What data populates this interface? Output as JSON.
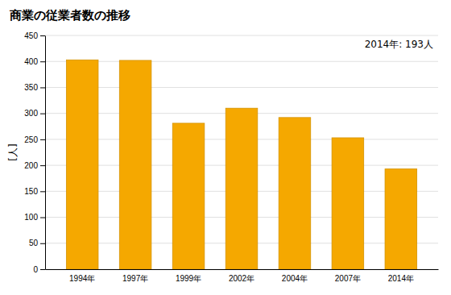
{
  "chart_data": {
    "type": "bar",
    "title": "商業の従業者数の推移",
    "ylabel": "[人]",
    "annotation": "2014年: 193人",
    "categories": [
      "1994年",
      "1997年",
      "1999年",
      "2002年",
      "2004年",
      "2007年",
      "2014年"
    ],
    "values": [
      403,
      402,
      281,
      310,
      292,
      253,
      193
    ],
    "color": "#F5A800",
    "ylim": [
      0,
      450
    ],
    "yticks": [
      0,
      50,
      100,
      150,
      200,
      250,
      300,
      350,
      400,
      450
    ],
    "grid": true
  }
}
